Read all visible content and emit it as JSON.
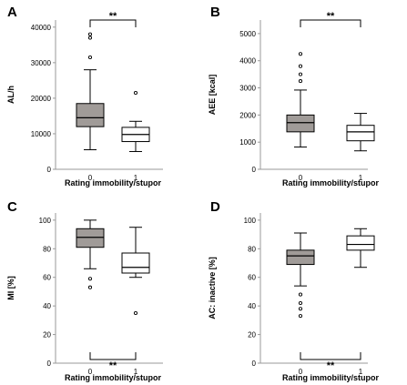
{
  "colors": {
    "filled_box": "#a09b98",
    "open_box": "#ffffff",
    "stroke": "#000000",
    "axis": "#9a9a9a"
  },
  "chart_data": [
    {
      "type": "box",
      "panel": "A",
      "ylabel": "AL/h",
      "xlabel": "Rating immobility/stupor",
      "categories": [
        "0",
        "1"
      ],
      "ylim": [
        0,
        42000
      ],
      "yticks": [
        "0",
        "10000",
        "20000",
        "30000",
        "40000"
      ],
      "ytick_values": [
        0,
        10000,
        20000,
        30000,
        40000
      ],
      "boxes": [
        {
          "category": "0",
          "fill": "filled",
          "min": 5500,
          "q1": 12000,
          "median": 14500,
          "q3": 18500,
          "max": 28000,
          "outliers": [
            31500,
            37000,
            38000
          ]
        },
        {
          "category": "1",
          "fill": "open",
          "min": 5000,
          "q1": 7800,
          "median": 9800,
          "q3": 11800,
          "max": 13500,
          "outliers": [
            21500
          ]
        }
      ],
      "significance": {
        "label": "**",
        "position": "top"
      }
    },
    {
      "type": "box",
      "panel": "B",
      "ylabel": "AEE [kcal]",
      "xlabel": "Rating immobility/stupor",
      "categories": [
        "0",
        "1"
      ],
      "ylim": [
        0,
        5500
      ],
      "yticks": [
        "0",
        "1000",
        "2000",
        "3000",
        "4000",
        "5000"
      ],
      "ytick_values": [
        0,
        1000,
        2000,
        3000,
        4000,
        5000
      ],
      "boxes": [
        {
          "category": "0",
          "fill": "filled",
          "min": 820,
          "q1": 1380,
          "median": 1720,
          "q3": 2000,
          "max": 2920,
          "outliers": [
            3250,
            3500,
            3800,
            4250
          ]
        },
        {
          "category": "1",
          "fill": "open",
          "min": 680,
          "q1": 1050,
          "median": 1380,
          "q3": 1620,
          "max": 2060,
          "outliers": []
        }
      ],
      "significance": {
        "label": "**",
        "position": "top"
      }
    },
    {
      "type": "box",
      "panel": "C",
      "ylabel": "MI [%]",
      "xlabel": "Rating immobility/stupor",
      "categories": [
        "0",
        "1"
      ],
      "ylim": [
        0,
        105
      ],
      "yticks": [
        "0",
        "20",
        "40",
        "60",
        "80",
        "100"
      ],
      "ytick_values": [
        0,
        20,
        40,
        60,
        80,
        100
      ],
      "boxes": [
        {
          "category": "0",
          "fill": "filled",
          "min": 66,
          "q1": 81,
          "median": 88,
          "q3": 94,
          "max": 100,
          "outliers": [
            59,
            53
          ]
        },
        {
          "category": "1",
          "fill": "open",
          "min": 60,
          "q1": 63,
          "median": 67,
          "q3": 77,
          "max": 95,
          "outliers": [
            35
          ]
        }
      ],
      "significance": {
        "label": "**",
        "position": "bottom"
      }
    },
    {
      "type": "box",
      "panel": "D",
      "ylabel": "AC: inactive [%]",
      "xlabel": "Rating immobility/stupor",
      "categories": [
        "0",
        "1"
      ],
      "ylim": [
        0,
        105
      ],
      "yticks": [
        "0",
        "20",
        "40",
        "60",
        "80",
        "100"
      ],
      "ytick_values": [
        0,
        20,
        40,
        60,
        80,
        100
      ],
      "boxes": [
        {
          "category": "0",
          "fill": "filled",
          "min": 54,
          "q1": 69,
          "median": 75,
          "q3": 79,
          "max": 91,
          "outliers": [
            48,
            42,
            38,
            33
          ]
        },
        {
          "category": "1",
          "fill": "open",
          "min": 67,
          "q1": 79,
          "median": 83,
          "q3": 89,
          "max": 94,
          "outliers": []
        }
      ],
      "significance": {
        "label": "**",
        "position": "bottom"
      }
    }
  ]
}
